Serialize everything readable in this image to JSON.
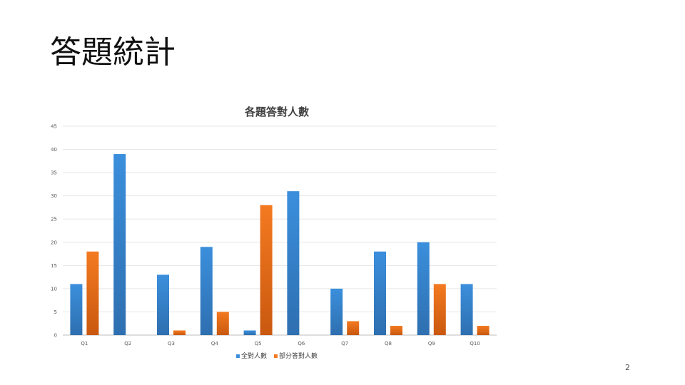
{
  "slide": {
    "title": "答題統計",
    "page_number": "2"
  },
  "colors": {
    "series1": "#3b8fdc",
    "series1_dark": "#2e6fb0",
    "series2": "#f37a20",
    "series2_dark": "#c9580f",
    "grid": "#e6e6e6",
    "axis": "#bfbfbf"
  },
  "chart_data": {
    "type": "bar",
    "title": "各題答對人數",
    "xlabel": "",
    "ylabel": "",
    "ylim": [
      0,
      45
    ],
    "yticks": [
      0,
      5,
      10,
      15,
      20,
      25,
      30,
      35,
      40,
      45
    ],
    "grid": true,
    "legend": "bottom",
    "categories": [
      "Q1",
      "Q2",
      "Q3",
      "Q4",
      "Q5",
      "Q6",
      "Q7",
      "Q8",
      "Q9",
      "Q10"
    ],
    "series": [
      {
        "name": "全對人數",
        "values": [
          11,
          39,
          13,
          19,
          1,
          31,
          10,
          18,
          20,
          11
        ]
      },
      {
        "name": "部分答對人數",
        "values": [
          18,
          0,
          1,
          5,
          28,
          0,
          3,
          2,
          11,
          2
        ]
      }
    ]
  }
}
